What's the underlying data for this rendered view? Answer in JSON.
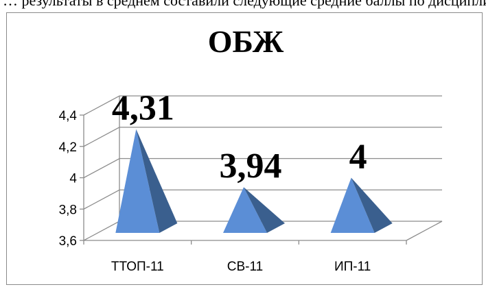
{
  "context": {
    "top_text": "… результаты в среднем составили следующие средние баллы по дисциплинам:"
  },
  "chart_data": {
    "type": "bar",
    "shape": "pyramid-3d",
    "title": "ОБЖ",
    "categories": [
      "ТТОП-11",
      "СВ-11",
      "ИП-11"
    ],
    "values": [
      4.31,
      3.94,
      4
    ],
    "data_labels": [
      "4,31",
      "3,94",
      "4"
    ],
    "yticks": [
      "3,6",
      "3,8",
      "4",
      "4,2",
      "4,4"
    ],
    "ytick_values": [
      3.6,
      3.8,
      4.0,
      4.2,
      4.4
    ],
    "ylim": [
      3.6,
      4.4
    ],
    "grid": true,
    "legend": "none",
    "colors": {
      "front": "#5b8ed6",
      "side": "#3a5f8e",
      "grid": "#8c8c8c"
    }
  }
}
